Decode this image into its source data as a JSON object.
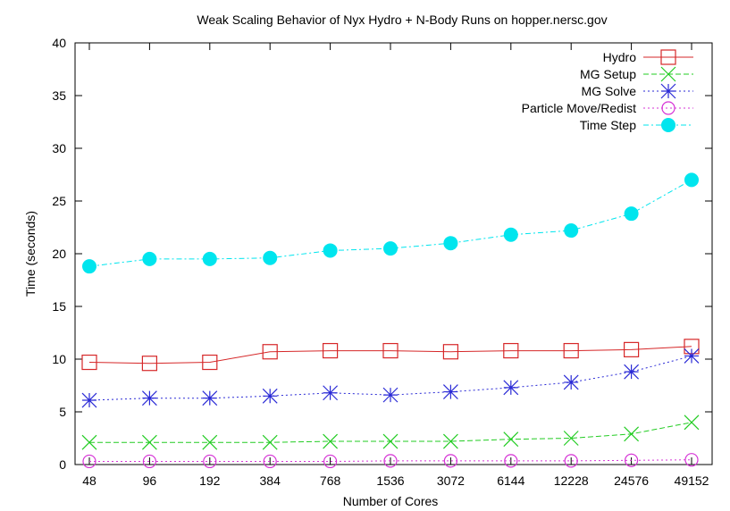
{
  "chart_data": {
    "type": "line",
    "title": "Weak Scaling Behavior of Nyx Hydro + N-Body Runs on hopper.nersc.gov",
    "xlabel": "Number of Cores",
    "ylabel": "Time (seconds)",
    "categories": [
      "48",
      "96",
      "192",
      "384",
      "768",
      "1536",
      "3072",
      "6144",
      "12228",
      "24576",
      "49152"
    ],
    "ylim": [
      0,
      40
    ],
    "yticks": [
      "0",
      "5",
      "10",
      "15",
      "20",
      "25",
      "30",
      "35",
      "40"
    ],
    "grid": false,
    "legend_position": "top-right",
    "series": [
      {
        "name": "Hydro",
        "color": "#d62728",
        "marker": "square-open",
        "dash": "solid",
        "values": [
          9.7,
          9.6,
          9.7,
          10.7,
          10.8,
          10.8,
          10.7,
          10.8,
          10.8,
          10.9,
          11.2
        ]
      },
      {
        "name": "MG Setup",
        "color": "#22cc22",
        "marker": "x",
        "dash": "dashed",
        "values": [
          2.1,
          2.1,
          2.1,
          2.1,
          2.2,
          2.2,
          2.2,
          2.4,
          2.5,
          2.9,
          4.0
        ]
      },
      {
        "name": "MG Solve",
        "color": "#2a2ad6",
        "marker": "star",
        "dash": "dotted",
        "values": [
          6.1,
          6.3,
          6.3,
          6.5,
          6.8,
          6.6,
          6.9,
          7.3,
          7.8,
          8.8,
          10.3
        ]
      },
      {
        "name": "Particle Move/Redist",
        "color": "#d633d6",
        "marker": "circle-open",
        "dash": "dotted",
        "values": [
          0.3,
          0.3,
          0.3,
          0.3,
          0.3,
          0.35,
          0.35,
          0.35,
          0.35,
          0.4,
          0.45
        ]
      },
      {
        "name": "Time Step",
        "color": "#00e5ee",
        "marker": "circle-filled",
        "dash": "dashdot",
        "values": [
          18.8,
          19.5,
          19.5,
          19.6,
          20.3,
          20.5,
          21.0,
          21.8,
          22.2,
          23.8,
          27.0
        ]
      }
    ]
  }
}
